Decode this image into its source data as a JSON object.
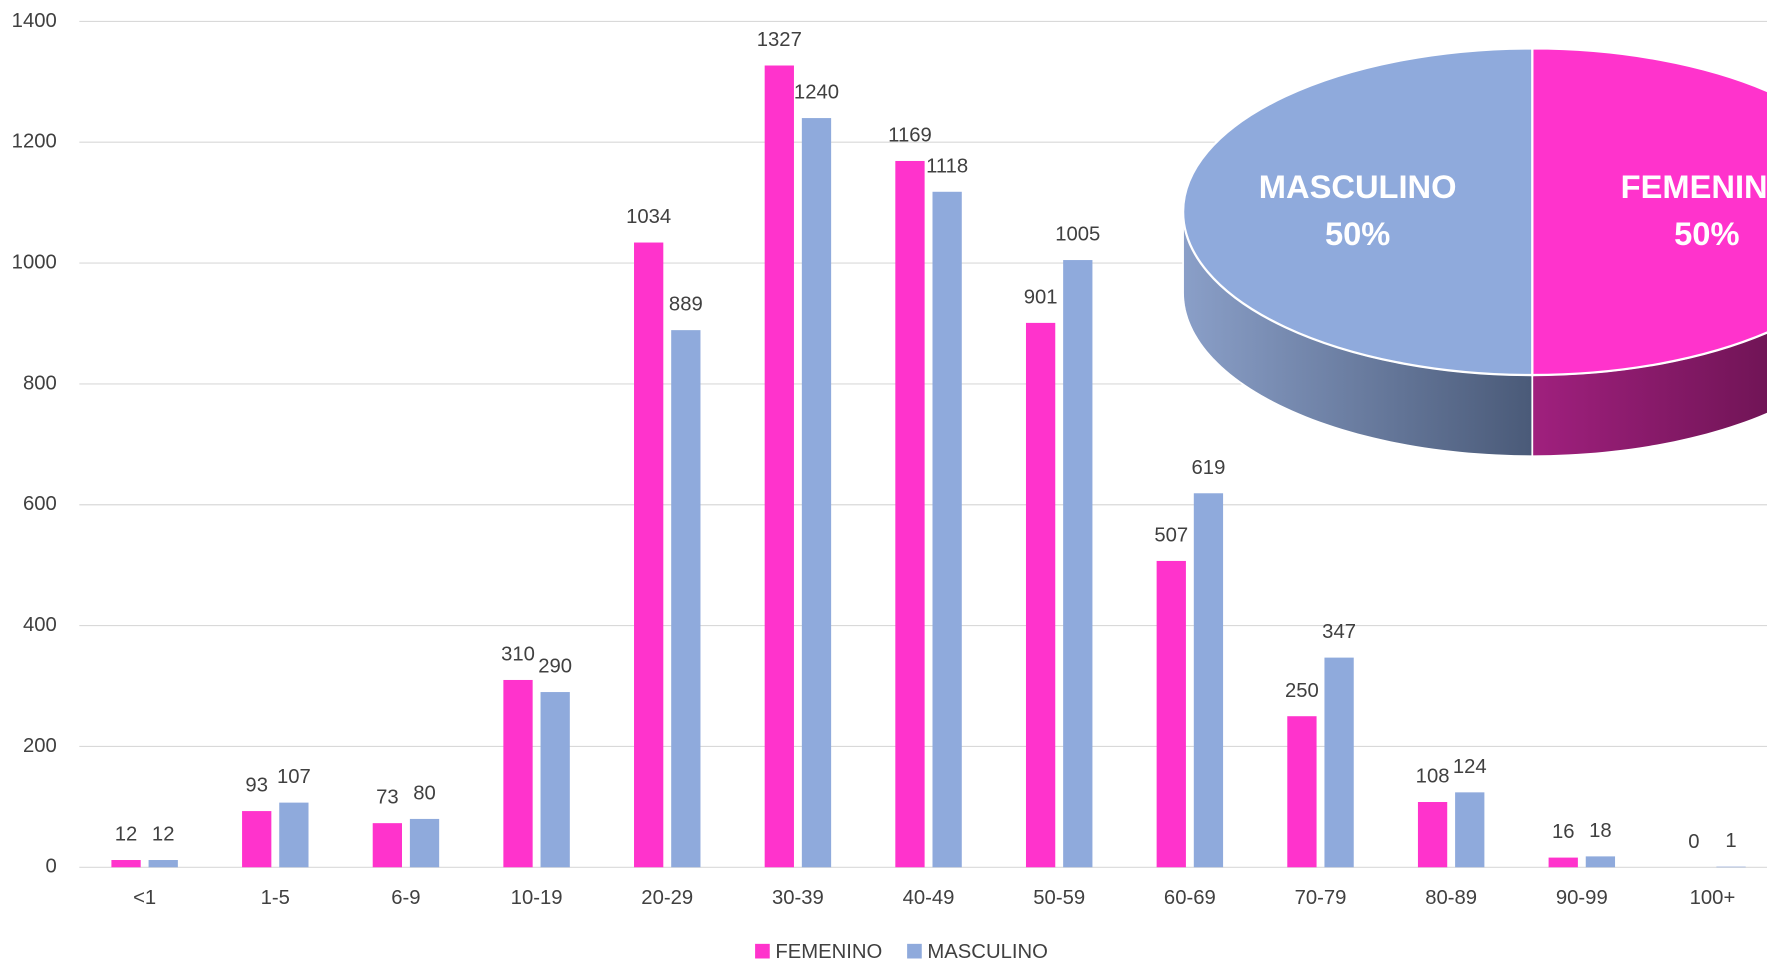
{
  "chart_data": [
    {
      "type": "bar",
      "categories": [
        "<1",
        "1-5",
        "6-9",
        "10-19",
        "20-29",
        "30-39",
        "40-49",
        "50-59",
        "60-69",
        "70-79",
        "80-89",
        "90-99",
        "100+"
      ],
      "series": [
        {
          "name": "FEMENINO",
          "color": "#ff33cc",
          "values": [
            12,
            93,
            73,
            310,
            1034,
            1327,
            1169,
            901,
            507,
            250,
            108,
            16,
            0
          ]
        },
        {
          "name": "MASCULINO",
          "color": "#8faadc",
          "values": [
            12,
            107,
            80,
            290,
            889,
            1240,
            1118,
            1005,
            619,
            347,
            124,
            18,
            1
          ]
        }
      ],
      "ylim": [
        0,
        1400
      ],
      "yticks": [
        0,
        200,
        400,
        600,
        800,
        1000,
        1200,
        1400
      ],
      "grid": true,
      "legend": "bottom"
    },
    {
      "type": "pie",
      "categories": [
        "FEMENINO",
        "MASCULINO"
      ],
      "values": [
        50,
        50
      ],
      "value_labels": [
        "50%",
        "50%"
      ],
      "colors": [
        "#ff33cc",
        "#8faadc"
      ],
      "side_colors": [
        "#6e1452",
        "#4e5f80"
      ]
    }
  ]
}
